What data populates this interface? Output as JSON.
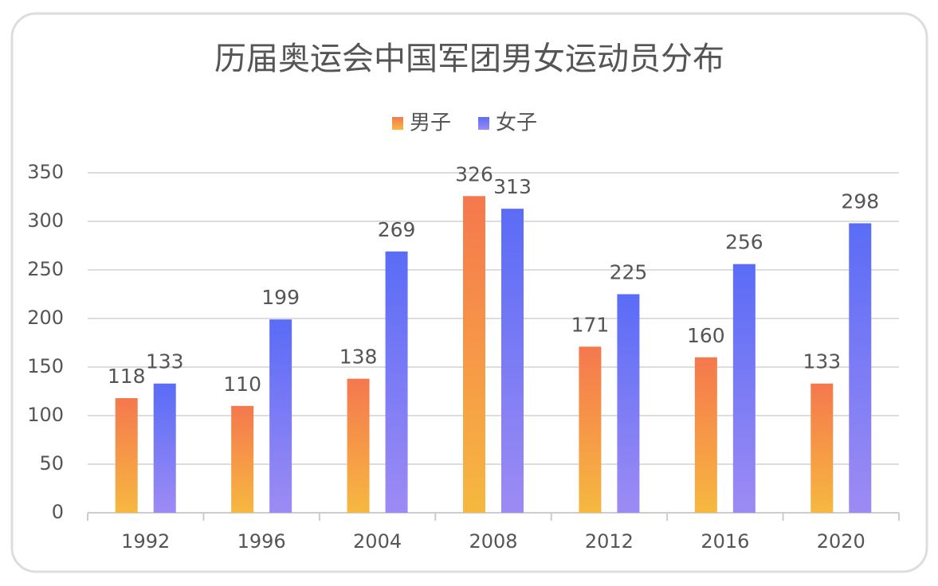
{
  "chart_data": {
    "type": "bar",
    "title": "历届奥运会中国军团男女运动员分布",
    "categories": [
      "1992",
      "1996",
      "2004",
      "2008",
      "2012",
      "2016",
      "2020"
    ],
    "series": [
      {
        "name": "男子",
        "color": [
          "#f5784e",
          "#f6b840"
        ],
        "values": [
          118,
          110,
          138,
          326,
          171,
          160,
          133
        ]
      },
      {
        "name": "女子",
        "color": [
          "#5a6cf6",
          "#9d8bf4"
        ],
        "values": [
          133,
          199,
          269,
          313,
          225,
          256,
          298
        ]
      }
    ],
    "ylim": [
      0,
      350
    ],
    "yticks": [
      0,
      50,
      100,
      150,
      200,
      250,
      300,
      350
    ],
    "grid": true,
    "legend": "top"
  }
}
